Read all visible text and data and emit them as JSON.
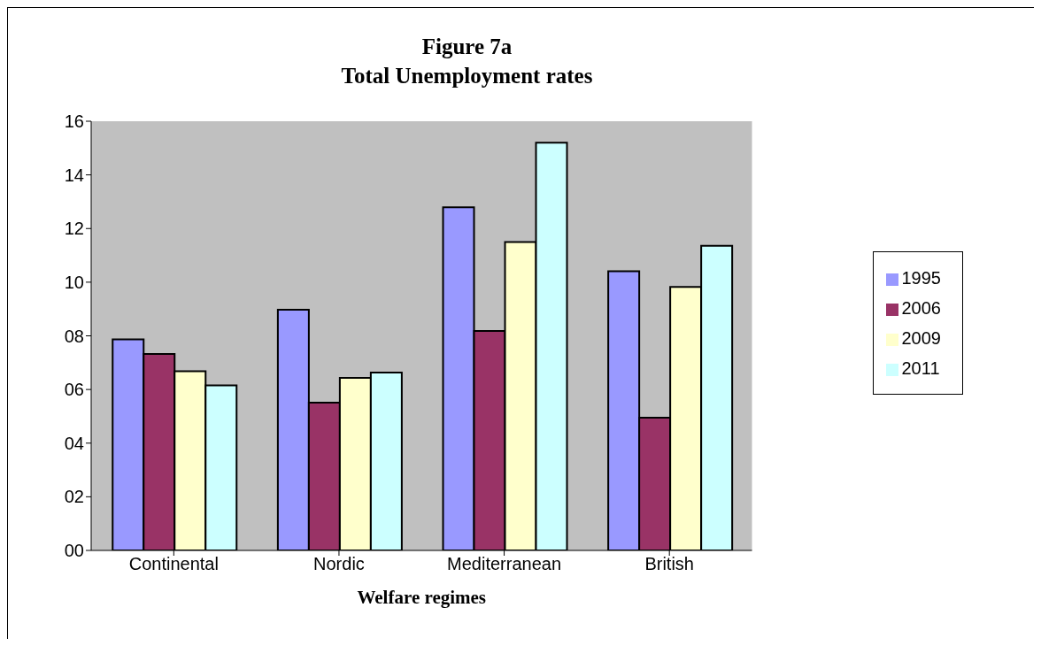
{
  "chart_data": {
    "type": "bar",
    "title": "Figure 7a\nTotal Unemployment rates",
    "xlabel": "Welfare regimes",
    "categories": [
      "Continental",
      "Nordic",
      "Mediterranean",
      "British"
    ],
    "series": [
      {
        "name": "1995",
        "color": "#9999ff",
        "values": [
          7.87,
          8.97,
          12.79,
          10.41
        ]
      },
      {
        "name": "2006",
        "color": "#993366",
        "values": [
          7.32,
          5.51,
          8.18,
          4.95
        ]
      },
      {
        "name": "2009",
        "color": "#ffffcc",
        "values": [
          6.68,
          6.43,
          11.5,
          9.82
        ]
      },
      {
        "name": "2011",
        "color": "#ccffff",
        "values": [
          6.15,
          6.63,
          15.2,
          11.36
        ]
      }
    ],
    "ylim": [
      0,
      16
    ],
    "yticks": [
      {
        "value": 0,
        "label": "00"
      },
      {
        "value": 2,
        "label": "02"
      },
      {
        "value": 4,
        "label": "04"
      },
      {
        "value": 6,
        "label": "06"
      },
      {
        "value": 8,
        "label": "08"
      },
      10,
      12,
      14,
      16
    ],
    "grid": false,
    "legend": "right"
  }
}
